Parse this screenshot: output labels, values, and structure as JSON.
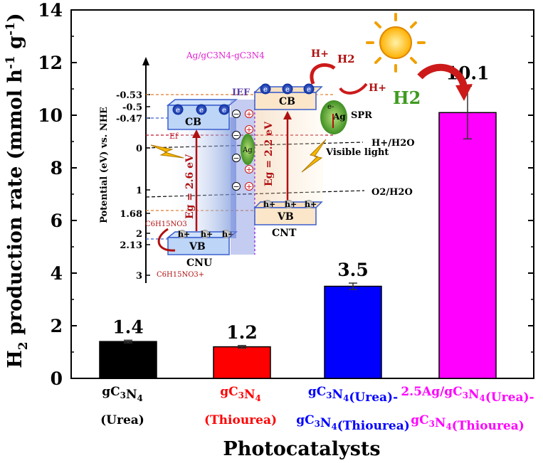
{
  "chart_data": {
    "type": "bar",
    "ylabel": "H2 production rate (mmol h-1 g-1)",
    "xlabel": "Photocatalysts",
    "ylim": [
      0,
      14
    ],
    "yticks": [
      0,
      2,
      4,
      6,
      8,
      10,
      12,
      14
    ],
    "categories": [
      {
        "line1": "gC3N4",
        "line2": "(Urea)"
      },
      {
        "line1": "gC3N4",
        "line2": "(Thiourea)"
      },
      {
        "line1": "gC3N4(Urea)-",
        "line2": "gC3N4(Thiourea)"
      },
      {
        "line1": "2.5Ag/gC3N4(Urea)-",
        "line2": "gC3N4(Thiourea)"
      }
    ],
    "values": [
      1.4,
      1.2,
      3.5,
      10.1
    ],
    "errors": [
      0.05,
      0.05,
      0.12,
      1.0
    ],
    "value_labels": [
      "1.4",
      "1.2",
      "3.5",
      "10.1"
    ],
    "colors": [
      "#000000",
      "#ff0000",
      "#0000ff",
      "#ff00ff"
    ],
    "label_colors": [
      "#000000",
      "#ff0000",
      "#0000ff",
      "#ff00ff"
    ]
  },
  "inset": {
    "title": "Ag/gC3N4-gC3N4",
    "axis_label": "Potential (eV) vs. NHE",
    "ticks": [
      "-0.53",
      "-0.5",
      "-0.47",
      "0",
      "1",
      "1.68",
      "2",
      "2.13",
      "3"
    ],
    "left_cb": "CB",
    "left_vb": "VB",
    "left_name": "CNU",
    "left_eg": "Eg = 2.6 eV",
    "right_cb": "CB",
    "right_vb": "VB",
    "right_name": "CNT",
    "right_eg": "Eg = 2.2 eV",
    "ief": "IEF",
    "ag_mid": "Ag",
    "ag_right": "Ag",
    "spr": "SPR",
    "ef": "Ef",
    "h_h2o": "H+/H2O",
    "o2_h2o": "O2/H2O",
    "visible_light": "Visible light",
    "electron": "e-",
    "hole": "h+",
    "hplus_top": "H+",
    "h2_top": "H2",
    "hplus_right": "H+",
    "sacrificial": "C6H15NO3",
    "sacrificial_ox": "C6H15NO3+",
    "h2_badge": "H2"
  }
}
